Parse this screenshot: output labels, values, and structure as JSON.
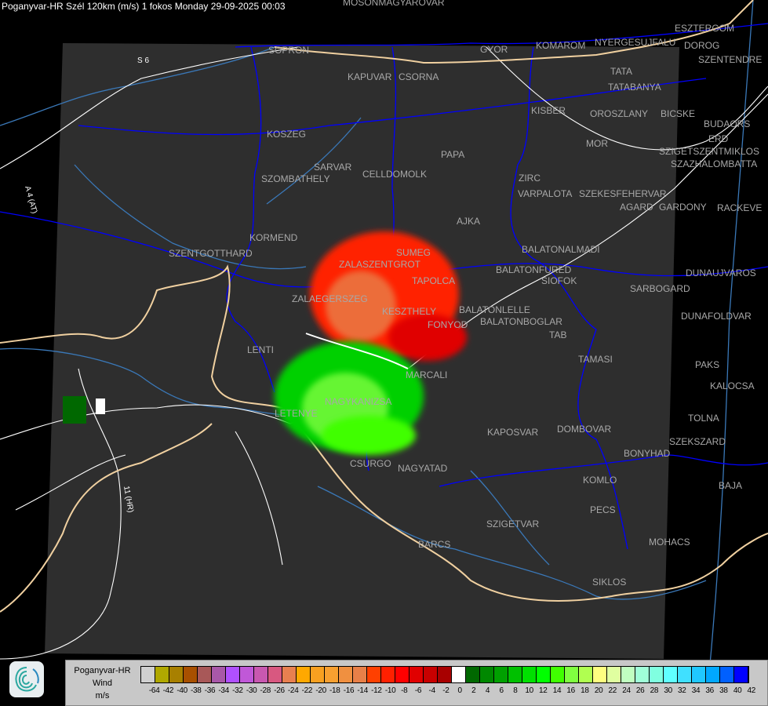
{
  "title": "Poganyvar-HR Szél 120km (m/s) 1 fokos Monday 29-09-2025 00:03",
  "legend": {
    "label_lines": [
      "Poganyvar-HR",
      "Wind",
      "m/s"
    ],
    "colors": [
      "#d0d0d0",
      "#b0a800",
      "#a88000",
      "#a85000",
      "#a85858",
      "#a858a8",
      "#b050ff",
      "#c058d8",
      "#c858b0",
      "#d85880",
      "#e88050",
      "#ffa800",
      "#f8a020",
      "#f8a030",
      "#f09040",
      "#e88048",
      "#ff4000",
      "#ff2000",
      "#ff0000",
      "#e00000",
      "#c80000",
      "#a80000",
      "#ffffff",
      "#006800",
      "#008800",
      "#00a000",
      "#00c000",
      "#00e000",
      "#00ff00",
      "#40ff00",
      "#80ff40",
      "#b0ff50",
      "#ffff80",
      "#e0ffa0",
      "#c0ffc0",
      "#a0ffd8",
      "#80ffe0",
      "#60ffff",
      "#40e0ff",
      "#20c8ff",
      "#00a8ff",
      "#0060ff",
      "#0000ff"
    ],
    "ticks": [
      "-64",
      "-42",
      "-40",
      "-38",
      "-36",
      "-34",
      "-32",
      "-30",
      "-28",
      "-26",
      "-24",
      "-22",
      "-20",
      "-18",
      "-16",
      "-14",
      "-12",
      "-10",
      "-8",
      "-6",
      "-4",
      "-2",
      "0",
      "2",
      "4",
      "6",
      "8",
      "10",
      "12",
      "14",
      "16",
      "18",
      "20",
      "22",
      "24",
      "26",
      "28",
      "30",
      "32",
      "34",
      "36",
      "38",
      "40",
      "42"
    ]
  },
  "road_labels": [
    "S 6",
    "A 4 (AT)",
    "11 (HR)"
  ],
  "cities": [
    "MOSONMAGYAROVAR",
    "SOPRON",
    "KAPUVAR",
    "CSORNA",
    "GYOR",
    "KOMAROM",
    "ESZTERGOM",
    "NYERGESUJFALU",
    "DOROG",
    "SZENTENDRE",
    "TATA",
    "TATABANYA",
    "KISBER",
    "OROSZLANY",
    "BICSKE",
    "BUDAORS",
    "MOR",
    "ERD",
    "SZIGETSZENTMIKLOS",
    "SZAZHALOMBATTA",
    "KOSZEG",
    "PAPA",
    "SZOMBATHELY",
    "SARVAR",
    "CELLDOMOLK",
    "ZIRC",
    "VARPALOTA",
    "SZEKESFEHERVAR",
    "AGARD",
    "GARDONY",
    "RACKEVE",
    "AJKA",
    "KORMEND",
    "SZENTGOTTHARD",
    "BALATONALMADI",
    "BALATONFURED",
    "SIOFOK",
    "DUNAUJVAROS",
    "SARBOGARD",
    "ZALASZENTGROT",
    "SUMEG",
    "TAPOLCA",
    "ZALAEGERSZEG",
    "KESZTHELY",
    "BALATONLELLE",
    "BALATONBOGLAR",
    "FONYOD",
    "DUNAFOLDVAR",
    "TAB",
    "LENTI",
    "TAMASI",
    "PAKS",
    "MARCALI",
    "KALOCSA",
    "NAGYKANIZSA",
    "LETENYE",
    "TOLNA",
    "KAPOSVAR",
    "DOMBOVAR",
    "SZEKSZARD",
    "BONYHAD",
    "CSURGO",
    "NAGYATAD",
    "KOMLO",
    "BAJA",
    "SZIGETVAR",
    "PECS",
    "MOHACS",
    "BARCS",
    "SIKLOS"
  ],
  "colors": {
    "map_background": "#2e2e2e",
    "outside": "#000000",
    "border": "#0000ff",
    "river": "#3a78b8",
    "road": "#ffffff",
    "country_border": "#f0d0a0",
    "city_label": "#a8a8a8"
  }
}
